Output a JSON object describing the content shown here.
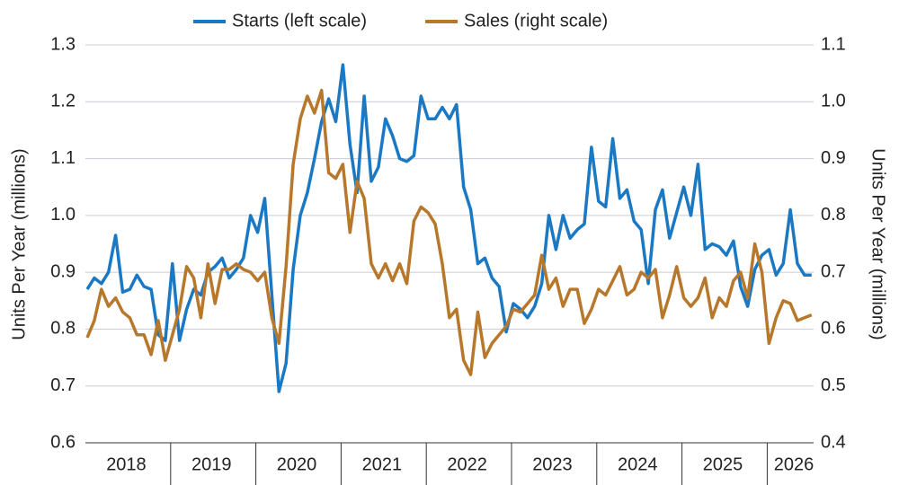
{
  "chart_data": {
    "type": "line",
    "legend": "top",
    "categories": [
      null,
      null,
      null,
      null,
      null,
      "2018",
      null,
      null,
      null,
      null,
      null,
      null,
      null,
      null,
      null,
      null,
      null,
      "2019",
      null,
      null,
      null,
      null,
      null,
      null,
      null,
      null,
      null,
      null,
      null,
      "2020",
      null,
      null,
      null,
      null,
      null,
      null,
      null,
      null,
      null,
      null,
      null,
      "2021",
      null,
      null,
      null,
      null,
      null,
      null,
      null,
      null,
      null,
      null,
      null,
      "2022",
      null,
      null,
      null,
      null,
      null,
      null,
      null,
      null,
      null,
      null,
      null,
      "2023",
      null,
      null,
      null,
      null,
      null,
      null,
      null,
      null,
      null,
      null,
      null,
      "2024",
      null,
      null,
      null,
      null,
      null,
      null,
      null,
      null,
      null,
      null,
      null,
      "2025",
      null,
      null,
      null,
      null,
      null,
      null,
      null,
      null,
      null,
      "2026",
      null,
      null,
      null
    ],
    "series": [
      {
        "name": "Starts (left scale)",
        "color": "#1b79c4",
        "axis": "y",
        "values": [
          0.87,
          0.89,
          0.88,
          0.9,
          0.965,
          0.865,
          0.87,
          0.895,
          0.875,
          0.87,
          0.79,
          0.78,
          0.915,
          0.78,
          0.835,
          0.87,
          0.86,
          0.9,
          0.91,
          0.925,
          0.89,
          0.905,
          0.925,
          1.0,
          0.97,
          1.03,
          0.86,
          0.69,
          0.74,
          0.905,
          1.0,
          1.04,
          1.1,
          1.165,
          1.205,
          1.165,
          1.265,
          1.125,
          1.04,
          1.21,
          1.06,
          1.085,
          1.17,
          1.14,
          1.1,
          1.095,
          1.105,
          1.21,
          1.17,
          1.17,
          1.19,
          1.17,
          1.195,
          1.05,
          1.01,
          0.915,
          0.925,
          0.89,
          0.875,
          0.795,
          0.845,
          0.835,
          0.82,
          0.84,
          0.88,
          1.0,
          0.94,
          1.0,
          0.96,
          0.975,
          0.985,
          1.12,
          1.025,
          1.015,
          1.135,
          1.03,
          1.045,
          0.99,
          0.975,
          0.88,
          1.01,
          1.045,
          0.96,
          1.005,
          1.05,
          1.0,
          1.09,
          0.94,
          0.95,
          0.945,
          0.93,
          0.955,
          0.875,
          0.84,
          0.905,
          0.93,
          0.94,
          0.895,
          0.915,
          1.01,
          0.915,
          0.895,
          0.895
        ]
      },
      {
        "name": "Sales (right scale)",
        "color": "#b8782b",
        "axis": "y2",
        "values": [
          0.585,
          0.615,
          0.67,
          0.64,
          0.655,
          0.63,
          0.62,
          0.59,
          0.59,
          0.555,
          0.615,
          0.545,
          0.59,
          0.635,
          0.71,
          0.69,
          0.62,
          0.715,
          0.645,
          0.705,
          0.705,
          0.715,
          0.705,
          0.7,
          0.685,
          0.7,
          0.62,
          0.575,
          0.71,
          0.89,
          0.97,
          1.01,
          0.98,
          1.02,
          0.875,
          0.865,
          0.89,
          0.77,
          0.86,
          0.83,
          0.715,
          0.69,
          0.715,
          0.685,
          0.715,
          0.68,
          0.79,
          0.815,
          0.805,
          0.785,
          0.715,
          0.62,
          0.635,
          0.545,
          0.52,
          0.63,
          0.55,
          0.575,
          0.59,
          0.605,
          0.635,
          0.63,
          0.645,
          0.66,
          0.73,
          0.67,
          0.69,
          0.64,
          0.67,
          0.67,
          0.61,
          0.635,
          0.67,
          0.66,
          0.685,
          0.71,
          0.66,
          0.67,
          0.7,
          0.69,
          0.705,
          0.62,
          0.66,
          0.71,
          0.655,
          0.64,
          0.655,
          0.69,
          0.62,
          0.655,
          0.64,
          0.685,
          0.7,
          0.655,
          0.75,
          0.7,
          0.575,
          0.62,
          0.65,
          0.645,
          0.615,
          0.62,
          0.625
        ]
      }
    ],
    "ylabel": "Units Per Year (millions)",
    "y2label": "Units Per Year (millions)",
    "ylim": [
      0.6,
      1.3
    ],
    "yticks": [
      0.6,
      0.7,
      0.8,
      0.9,
      {
        "value": 1,
        "label": "1.0"
      },
      1.1,
      1.2,
      1.3
    ],
    "y2lim": [
      0.4,
      1.1
    ],
    "y2ticks": [
      0.4,
      0.5,
      0.6,
      0.7,
      0.8,
      0.9,
      {
        "value": 1,
        "label": "1.0"
      },
      1.1
    ],
    "grid": true
  }
}
